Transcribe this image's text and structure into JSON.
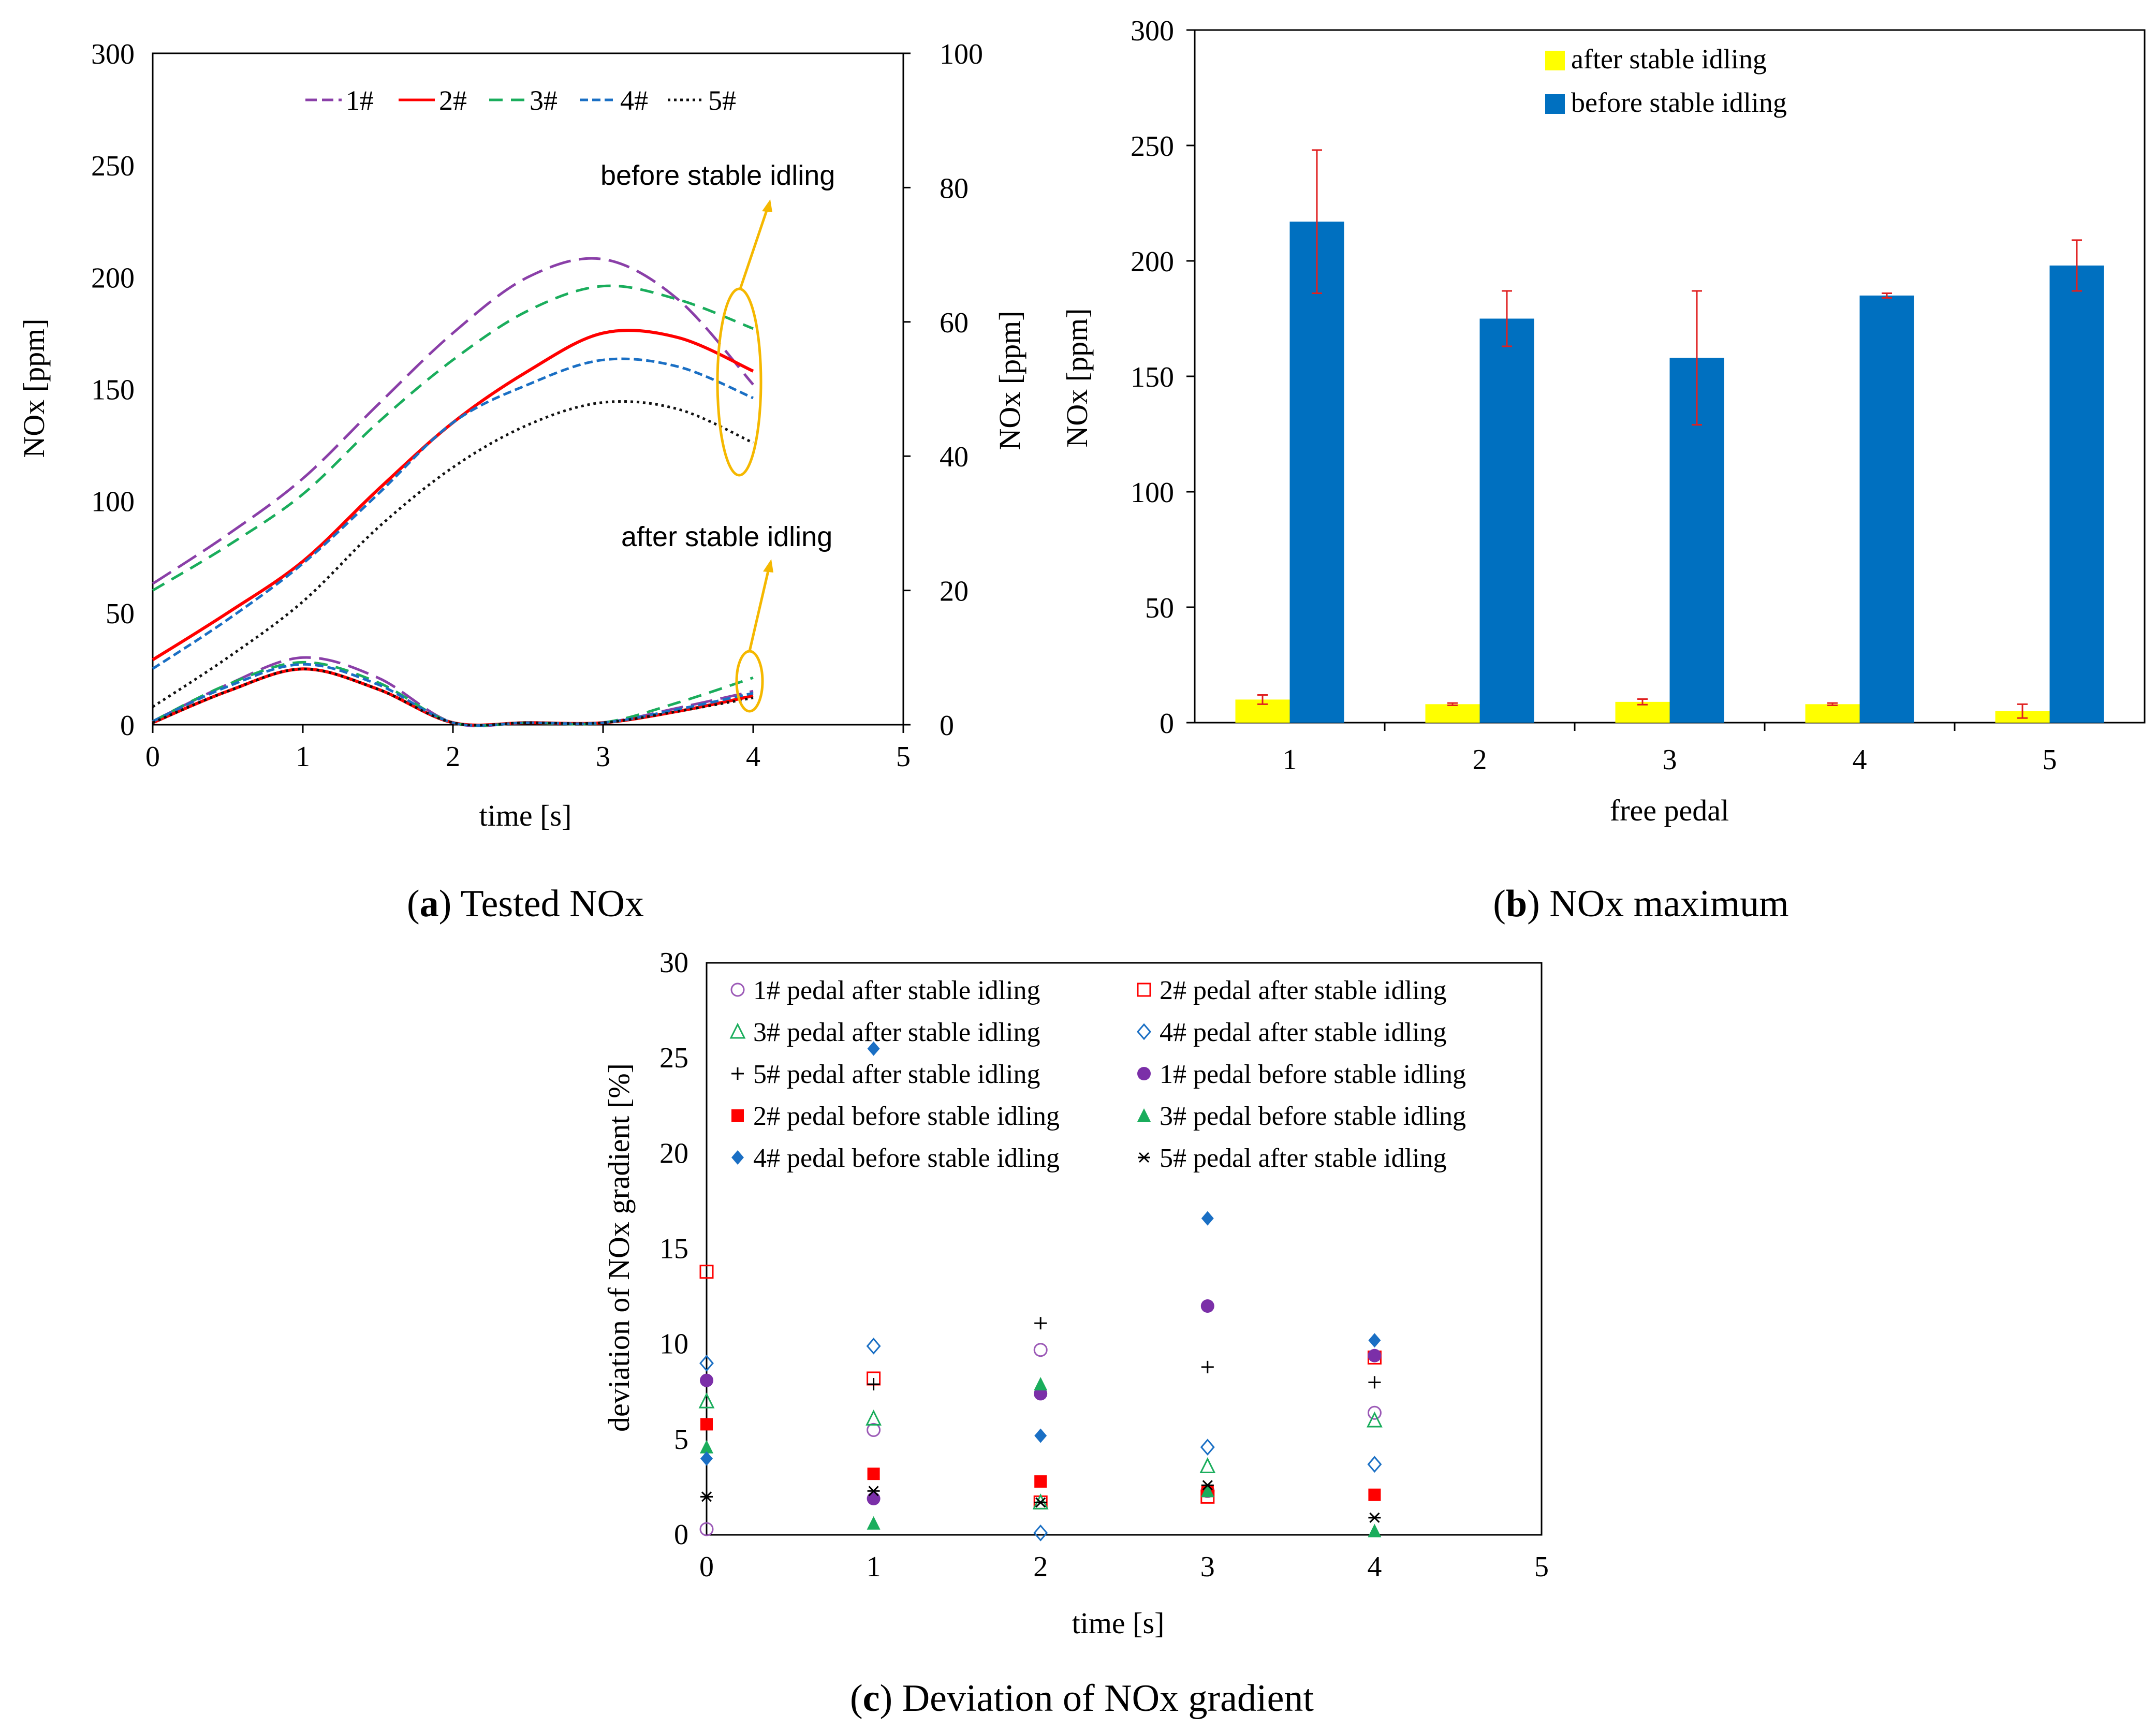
{
  "captions": {
    "a_letter": "a",
    "a_text": " Tested NOx",
    "b_letter": "b",
    "b_text": " NOx maximum",
    "c_letter": "c",
    "c_text": " Deviation of NOx gradient"
  },
  "colors": {
    "s1": "#8a3fa8",
    "s2": "#ff0000",
    "s3": "#1aad5c",
    "s4": "#1a6fc4",
    "s5": "#111111",
    "after_bar": "#ffff00",
    "before_bar": "#0070c0",
    "error": "#e02020",
    "annot": "#f5b800"
  },
  "chart_data": [
    {
      "id": "a",
      "type": "line",
      "title": "Tested NOx",
      "xlabel": "time [s]",
      "ylabel": "NOx [ppm]",
      "ylabel_right": "NOx  [ppm]",
      "xlim": [
        0,
        5
      ],
      "ylim": [
        0,
        300
      ],
      "ylim_right": [
        0,
        100
      ],
      "xticks": [
        "0",
        "1",
        "2",
        "3",
        "4",
        "5"
      ],
      "yticks": [
        "0",
        "50",
        "100",
        "150",
        "200",
        "250",
        "300"
      ],
      "yticks_right": [
        "0",
        "20",
        "40",
        "60",
        "80",
        "100"
      ],
      "legend": [
        "1#",
        "2#",
        "3#",
        "4#",
        "5#"
      ],
      "annotations": [
        "before stable idling",
        "after stable idling"
      ],
      "before_series": [
        {
          "name": "1#",
          "x": [
            0,
            0.5,
            1,
            1.5,
            2,
            2.5,
            3,
            3.5,
            4
          ],
          "y": [
            63,
            85,
            110,
            143,
            175,
            200,
            208,
            190,
            152
          ]
        },
        {
          "name": "2#",
          "x": [
            0,
            0.5,
            1,
            1.5,
            2,
            2.5,
            3,
            3.5,
            4
          ],
          "y": [
            29,
            50,
            73,
            105,
            135,
            158,
            175,
            173,
            158
          ]
        },
        {
          "name": "3#",
          "x": [
            0,
            0.5,
            1,
            1.5,
            2,
            2.5,
            3,
            3.5,
            4
          ],
          "y": [
            60,
            80,
            103,
            135,
            163,
            185,
            196,
            190,
            177
          ]
        },
        {
          "name": "4#",
          "x": [
            0,
            0.5,
            1,
            1.5,
            2,
            2.5,
            3,
            3.5,
            4
          ],
          "y": [
            25,
            47,
            72,
            103,
            135,
            152,
            163,
            160,
            146
          ]
        },
        {
          "name": "5#",
          "x": [
            0,
            0.5,
            1,
            1.5,
            2,
            2.5,
            3,
            3.5,
            4
          ],
          "y": [
            8,
            30,
            55,
            88,
            115,
            134,
            144,
            141,
            126
          ]
        }
      ],
      "after_series_right_axis": [
        {
          "name": "1#",
          "x": [
            0,
            0.5,
            1,
            1.5,
            2,
            2.5,
            3,
            3.5,
            4
          ],
          "y": [
            0.5,
            6,
            10,
            7,
            0.3,
            0.3,
            0.3,
            2.5,
            5
          ]
        },
        {
          "name": "2#",
          "x": [
            0,
            0.5,
            1,
            1.5,
            2,
            2.5,
            3,
            3.5,
            4
          ],
          "y": [
            0.3,
            5,
            8.3,
            5.3,
            0.3,
            0.3,
            0.3,
            2,
            4.3
          ]
        },
        {
          "name": "3#",
          "x": [
            0,
            0.5,
            1,
            1.5,
            2,
            2.5,
            3,
            3.5,
            4
          ],
          "y": [
            0.5,
            6,
            9.3,
            6.3,
            0.3,
            0.3,
            0.3,
            3.3,
            7
          ]
        },
        {
          "name": "4#",
          "x": [
            0,
            0.5,
            1,
            1.5,
            2,
            2.5,
            3,
            3.5,
            4
          ],
          "y": [
            0.5,
            5.7,
            9,
            6,
            0.3,
            0.3,
            0.3,
            2.3,
            4.7
          ]
        },
        {
          "name": "5#",
          "x": [
            0,
            0.5,
            1,
            1.5,
            2,
            2.5,
            3,
            3.5,
            4
          ],
          "y": [
            0.3,
            5,
            8.3,
            5.3,
            0.3,
            0.3,
            0.3,
            2,
            4
          ]
        }
      ]
    },
    {
      "id": "b",
      "type": "bar",
      "title": "NOx maximum",
      "xlabel": "free pedal",
      "ylabel": "NOx [ppm]",
      "categories": [
        "1",
        "2",
        "3",
        "4",
        "5"
      ],
      "ylim": [
        0,
        300
      ],
      "yticks": [
        "0",
        "50",
        "100",
        "150",
        "200",
        "250",
        "300"
      ],
      "series": [
        {
          "name": "after stable idling",
          "values": [
            10,
            8,
            9,
            8,
            5
          ],
          "errors": [
            2,
            0.5,
            1.2,
            0.5,
            3
          ]
        },
        {
          "name": "before stable idling",
          "values": [
            217,
            175,
            158,
            185,
            198
          ],
          "errors": [
            31,
            12,
            29,
            1,
            11
          ]
        }
      ]
    },
    {
      "id": "c",
      "type": "scatter",
      "title": "Deviation of NOx gradient",
      "xlabel": "time [s]",
      "ylabel": "deviation of NOx gradient [%]",
      "xlim": [
        0,
        5
      ],
      "ylim": [
        0,
        30
      ],
      "xticks": [
        "0",
        "1",
        "2",
        "3",
        "4",
        "5"
      ],
      "yticks": [
        "0",
        "5",
        "10",
        "15",
        "20",
        "25",
        "30"
      ],
      "series": [
        {
          "name": "1# pedal after stable idling",
          "marker": "circle-open",
          "color": "#9b59b6",
          "x": [
            0,
            1,
            2,
            3,
            4
          ],
          "y": [
            0.3,
            5.5,
            9.7,
            2.3,
            6.4
          ]
        },
        {
          "name": "2# pedal after stable idling",
          "marker": "square-open",
          "color": "#ff0000",
          "x": [
            0,
            1,
            2,
            3,
            4
          ],
          "y": [
            13.8,
            8.2,
            1.7,
            2.0,
            9.3
          ]
        },
        {
          "name": "3# pedal after stable idling",
          "marker": "triangle-open",
          "color": "#1aad5c",
          "x": [
            0,
            1,
            2,
            3,
            4
          ],
          "y": [
            7.0,
            6.1,
            1.7,
            3.6,
            6.0
          ]
        },
        {
          "name": "4# pedal after stable idling",
          "marker": "diamond-open",
          "color": "#1a6fc4",
          "x": [
            0,
            1,
            2,
            3,
            4
          ],
          "y": [
            9.0,
            9.9,
            0.1,
            4.6,
            3.7
          ]
        },
        {
          "name": "5# pedal after stable idling",
          "marker": "plus",
          "color": "#000000",
          "x": [
            1,
            2,
            3,
            4
          ],
          "y": [
            7.9,
            11.1,
            8.8,
            8.0
          ]
        },
        {
          "name": "1# pedal before stable idling",
          "marker": "circle",
          "color": "#7b2fa8",
          "x": [
            0,
            1,
            2,
            3,
            4
          ],
          "y": [
            8.1,
            1.9,
            7.4,
            12.0,
            9.4
          ]
        },
        {
          "name": "2# pedal before stable idling",
          "marker": "square",
          "color": "#ff0000",
          "x": [
            0,
            1,
            2,
            3,
            4
          ],
          "y": [
            5.8,
            3.2,
            2.8,
            2.3,
            2.1
          ]
        },
        {
          "name": "3# pedal before stable idling",
          "marker": "triangle",
          "color": "#1aad5c",
          "x": [
            0,
            1,
            2,
            3,
            4
          ],
          "y": [
            4.6,
            0.6,
            7.9,
            2.3,
            0.2
          ]
        },
        {
          "name": "4# pedal before stable idling",
          "marker": "diamond",
          "color": "#1a6fc4",
          "x": [
            0,
            1,
            2,
            3,
            4
          ],
          "y": [
            4.0,
            25.5,
            5.2,
            16.6,
            10.2
          ]
        },
        {
          "name": "5# pedal after stable idling",
          "marker": "star",
          "color": "#000000",
          "x": [
            0,
            1,
            2,
            3,
            4
          ],
          "y": [
            2.0,
            2.3,
            1.7,
            2.6,
            0.9
          ]
        }
      ]
    }
  ]
}
